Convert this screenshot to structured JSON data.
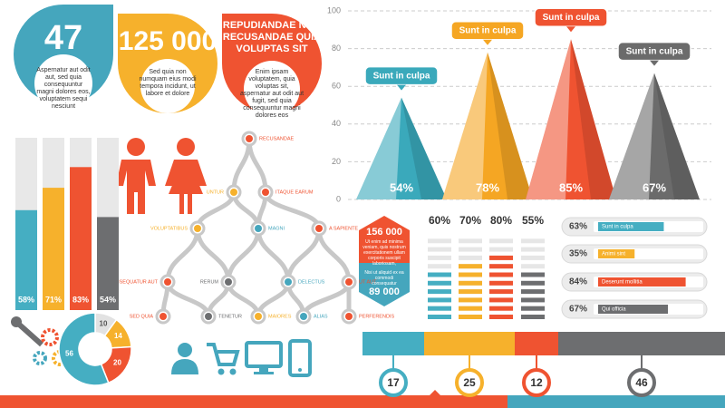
{
  "drops": [
    {
      "number": "47",
      "text": "Aspernatur aut odit aut, sed quia consequuntur magni dolores eos, voluptatem sequi nesciunt"
    },
    {
      "number": "125 000",
      "text": "Sed quia non numquam eius modi tempora incidunt, ut labore et dolore"
    },
    {
      "title": "REPUDIANDAE NON RECUSANDAE QUIA VOLUPTAS SIT",
      "text": "Enim ipsam voluptatem, quia voluptas sit, aspernatur aut odit aut fugit, sed quia consequuntur magni dolores eos"
    }
  ],
  "hexagon": {
    "top_number": "156 000",
    "top_text": "Ut enim ad minima veniam, quis nostrum exercitationem ullam corporis suscipit laboriosam,",
    "bottom_text": "Nisi ut aliquid ex ea commodi consequatur",
    "bottom_number": "89 000"
  },
  "tree": {
    "nodes": [
      "RECUSANDAE",
      "UNTUR",
      "ITAQUE EARUM",
      "VOLUPTATIBUS",
      "MAGNI",
      "A SAPIENTE",
      "CONSEQUATUR AUT",
      "RERUM",
      "DELECTUS",
      "UT AUT",
      "SED QUIA",
      "TENETUR",
      "MAIORES",
      "ALIAS",
      "PERFERENDIS"
    ]
  },
  "chart_data": [
    {
      "type": "pyramid",
      "categories": [
        "Sunt in culpa",
        "Sunt in culpa",
        "Sunt in culpa",
        "Sunt in culpa"
      ],
      "values": [
        54,
        78,
        85,
        67
      ],
      "value_labels": [
        "54%",
        "78%",
        "85%",
        "67%"
      ],
      "colors": [
        "#3aa9bb",
        "#f5a623",
        "#ef5331",
        "#6b6b6b"
      ],
      "ylim": [
        0,
        100
      ],
      "yticks": [
        0,
        20,
        40,
        60,
        80,
        100
      ],
      "grid": true
    },
    {
      "type": "bar",
      "values": [
        58,
        71,
        83,
        54
      ],
      "value_labels": [
        "58%",
        "71%",
        "83%",
        "54%"
      ],
      "colors": [
        "#45aec2",
        "#f6b12c",
        "#ef5331",
        "#6d6e70"
      ],
      "ylim": [
        0,
        100
      ]
    },
    {
      "type": "segmented",
      "values": [
        60,
        70,
        80,
        55
      ],
      "value_labels": [
        "60%",
        "70%",
        "80%",
        "55%"
      ],
      "colors": [
        "#45aec2",
        "#f6b12c",
        "#ef5331",
        "#6d6e70"
      ],
      "ylim": [
        0,
        100
      ]
    },
    {
      "type": "hbar",
      "categories": [
        "Sunt in culpa",
        "Animi sint",
        "Deserunt mollitia",
        "Qui officia"
      ],
      "values": [
        63,
        35,
        84,
        67
      ],
      "value_labels": [
        "63%",
        "35%",
        "84%",
        "67%"
      ],
      "colors": [
        "#45aec2",
        "#f6b12c",
        "#ef5331",
        "#6d6e70"
      ],
      "xlim": [
        0,
        100
      ]
    },
    {
      "type": "stacked",
      "values": [
        17,
        25,
        12,
        46
      ],
      "colors": [
        "#45aec2",
        "#f6b12c",
        "#ef5331",
        "#6d6e70"
      ],
      "xlim": [
        0,
        100
      ]
    },
    {
      "type": "pie",
      "values": [
        10,
        14,
        20,
        56
      ],
      "colors": [
        "#e2e2e2",
        "#f6b12c",
        "#ef5331",
        "#45aec2"
      ]
    }
  ]
}
